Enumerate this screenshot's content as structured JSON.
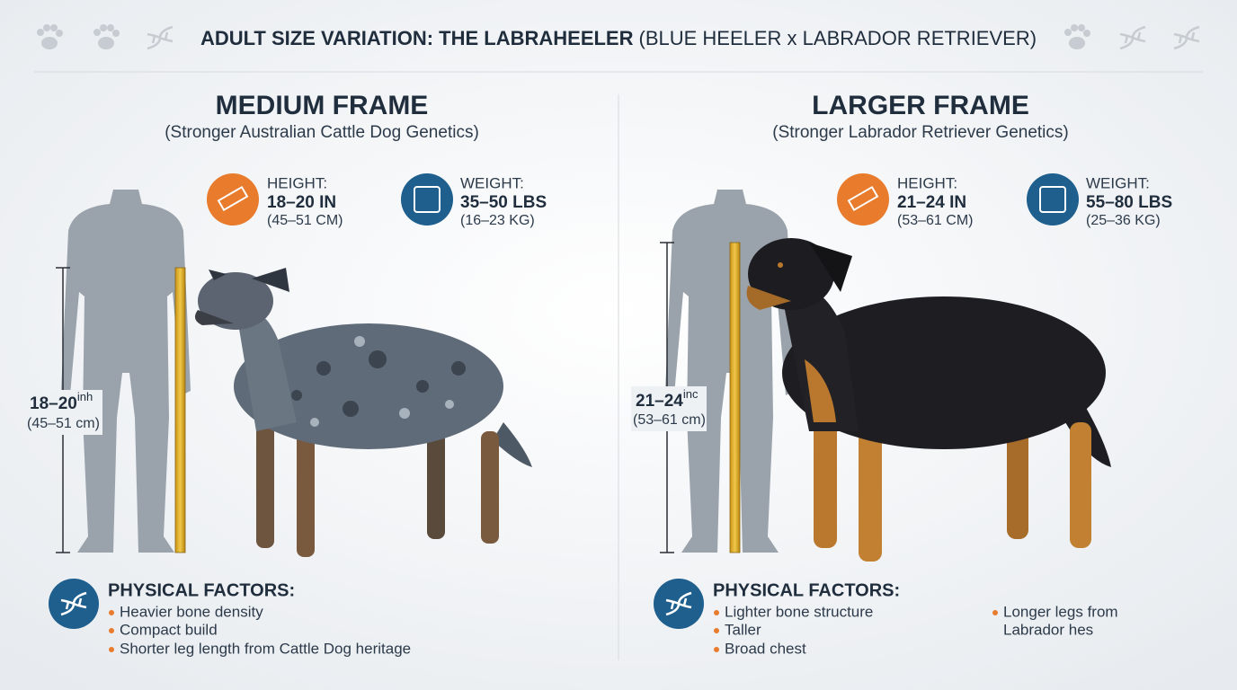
{
  "header": {
    "title_bold": "ADULT SIZE VARIATION: THE LABRAHEELER",
    "title_rest": "(BLUE HEELER x LABRADOR RETRIEVER)"
  },
  "panels": [
    {
      "title": "MEDIUM FRAME",
      "subtitle": "(Stronger Australian Cattle Dog Genetics)",
      "height": {
        "label": "HEIGHT:",
        "value": "18–20 IN",
        "metric": "(45–51 CM)"
      },
      "weight": {
        "label": "WEIGHT:",
        "value": "35–50 LBS",
        "metric": "(16–23 KG)"
      },
      "ruler": {
        "value": "18–20",
        "unit": "inh",
        "metric": "(45–51 cm)"
      },
      "factors": {
        "title": "PHYSICAL FACTORS:",
        "items": [
          "Heavier bone density",
          "Compact build",
          "Shorter leg length from Cattle Dog heritage"
        ]
      }
    },
    {
      "title": "LARGER FRAME",
      "subtitle": "(Stronger Labrador Retriever Genetics)",
      "height": {
        "label": "HEIGHT:",
        "value": "21–24 IN",
        "metric": "(53–61 CM)"
      },
      "weight": {
        "label": "WEIGHT:",
        "value": "55–80 LBS",
        "metric": "(25–36 KG)"
      },
      "ruler": {
        "value": "21–24",
        "unit": "inc",
        "metric": "(53–61 cm)"
      },
      "factors": {
        "title": "PHYSICAL FACTORS:",
        "items": [
          "Lighter bone structure",
          "Taller",
          "Broad chest"
        ],
        "extra": [
          "Longer legs from",
          "Labrador hes"
        ]
      }
    }
  ]
}
